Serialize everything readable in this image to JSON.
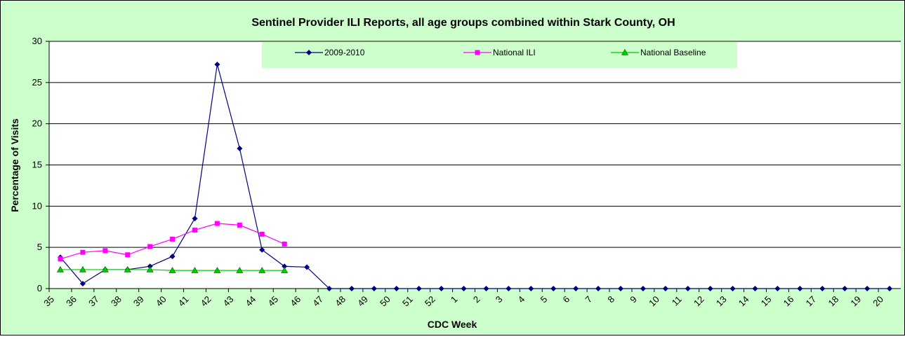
{
  "chart_data": {
    "type": "line",
    "title": "Sentinel Provider ILI Reports, all age groups combined within Stark County, OH",
    "x_label": "CDC Week",
    "y_label": "Percentage of Visits",
    "categories": [
      "35",
      "36",
      "37",
      "38",
      "39",
      "40",
      "41",
      "42",
      "43",
      "44",
      "45",
      "46",
      "47",
      "48",
      "49",
      "50",
      "51",
      "52",
      "1",
      "2",
      "3",
      "4",
      "5",
      "6",
      "7",
      "8",
      "9",
      "10",
      "11",
      "12",
      "13",
      "14",
      "15",
      "16",
      "17",
      "18",
      "19",
      "20"
    ],
    "series": [
      {
        "name": "2009-2010",
        "color": "#000080",
        "marker": "diamond",
        "values": [
          3.8,
          0.6,
          2.3,
          2.3,
          2.7,
          3.9,
          8.5,
          27.2,
          17,
          4.7,
          2.7,
          2.6,
          0,
          0,
          0,
          0,
          0,
          0,
          0,
          0,
          0,
          0,
          0,
          0,
          0,
          0,
          0,
          0,
          0,
          0,
          0,
          0,
          0,
          0,
          0,
          0,
          0,
          0
        ]
      },
      {
        "name": "National ILI",
        "color": "#ff00ff",
        "marker": "square",
        "values": [
          3.6,
          4.4,
          4.6,
          4.1,
          5.1,
          6.0,
          7.1,
          7.9,
          7.7,
          6.6,
          5.4,
          null,
          null,
          null,
          null,
          null,
          null,
          null,
          null,
          null,
          null,
          null,
          null,
          null,
          null,
          null,
          null,
          null,
          null,
          null,
          null,
          null,
          null,
          null,
          null,
          null,
          null,
          null
        ]
      },
      {
        "name": "National Baseline",
        "color": "#00cc00",
        "marker": "triangle",
        "values": [
          2.3,
          2.3,
          2.3,
          2.3,
          2.3,
          2.2,
          2.2,
          2.2,
          2.2,
          2.2,
          2.2,
          null,
          null,
          null,
          null,
          null,
          null,
          null,
          null,
          null,
          null,
          null,
          null,
          null,
          null,
          null,
          null,
          null,
          null,
          null,
          null,
          null,
          null,
          null,
          null,
          null,
          null,
          null
        ]
      }
    ],
    "ylim": [
      0,
      30
    ],
    "yticks": [
      0,
      5,
      10,
      15,
      20,
      25,
      30
    ],
    "grid": true
  }
}
